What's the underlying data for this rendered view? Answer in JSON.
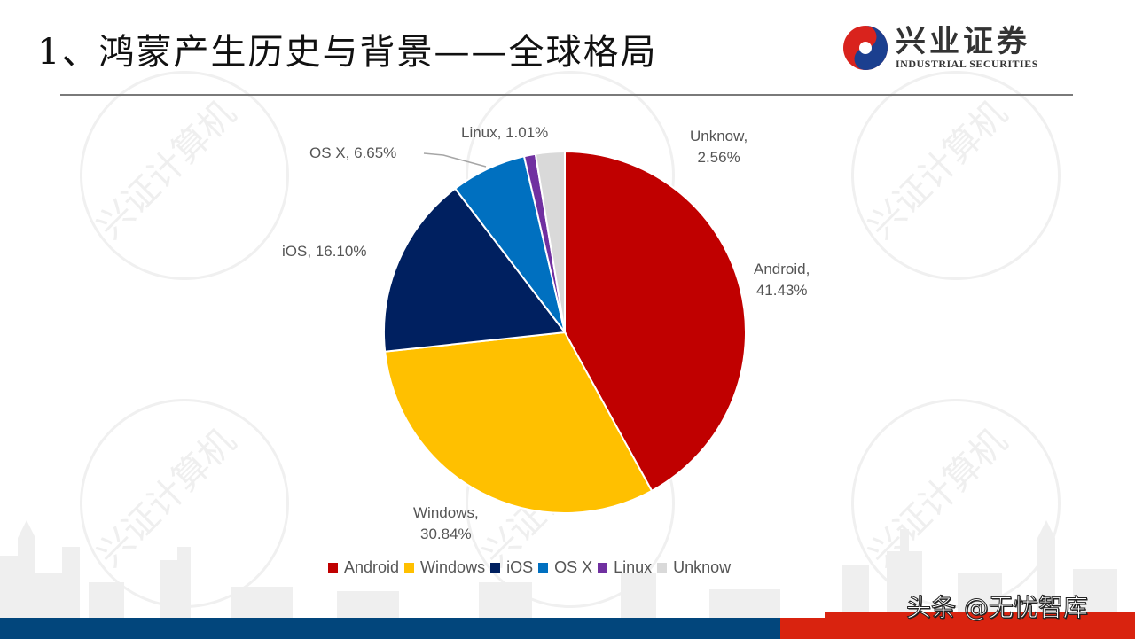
{
  "slide": {
    "title": "1、鸿蒙产生历史与背景——全球格局",
    "logo": {
      "name_cn": "兴业证券",
      "name_en": "INDUSTRIAL SECURITIES"
    },
    "watermark": "兴证计算机",
    "source_label": "头条 @无忧智库"
  },
  "colors": {
    "Android": "#c00000",
    "Windows": "#ffc000",
    "iOS": "#002060",
    "OS X": "#0070c0",
    "Linux": "#7030a0",
    "Unknow": "#d9d9d9",
    "footer_blue": "#02467c",
    "footer_red": "#d9230f"
  },
  "chart_data": {
    "type": "pie",
    "title": "",
    "categories": [
      "Android",
      "Windows",
      "iOS",
      "OS X",
      "Linux",
      "Unknow"
    ],
    "values": [
      41.43,
      30.84,
      16.1,
      6.65,
      1.01,
      2.56
    ],
    "unit": "%",
    "labels": {
      "Android": "Android, 41.43%",
      "Windows": "Windows, 30.84%",
      "iOS": "iOS, 16.10%",
      "OS X": "OS X, 6.65%",
      "Linux": "Linux, 1.01%",
      "Unknow": "Unknow, 2.56%"
    },
    "legend_position": "bottom",
    "start_angle": "12 o'clock, clockwise"
  },
  "data_labels": {
    "android_1": "Android,",
    "android_2": "41.43%",
    "windows_1": "Windows,",
    "windows_2": "30.84%",
    "ios": "iOS, 16.10%",
    "osx": "OS X, 6.65%",
    "linux": "Linux, 1.01%",
    "unknow_1": "Unknow,",
    "unknow_2": "2.56%"
  },
  "legend": [
    "Android",
    "Windows",
    "iOS",
    "OS X",
    "Linux",
    "Unknow"
  ]
}
